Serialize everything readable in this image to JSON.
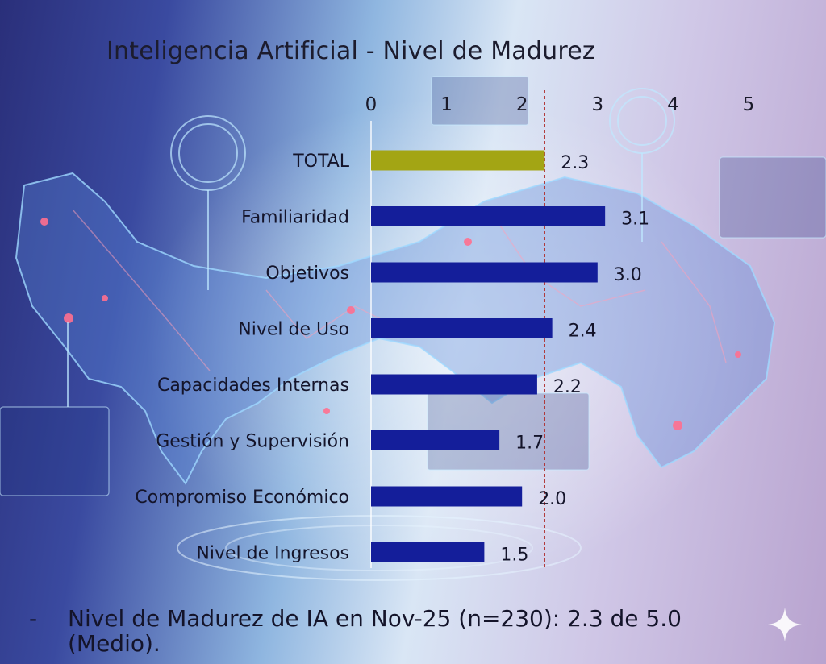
{
  "chart_data": {
    "type": "bar",
    "orientation": "horizontal",
    "title": "Inteligencia Artificial - Nivel de Madurez",
    "categories": [
      "TOTAL",
      "Familiaridad",
      "Objetivos",
      "Nivel de Uso",
      "Capacidades Internas",
      "Gestión y Supervisión",
      "Compromiso Económico",
      "Nivel de Ingresos"
    ],
    "values": [
      2.3,
      3.1,
      3.0,
      2.4,
      2.2,
      1.7,
      2.0,
      1.5
    ],
    "value_labels": [
      "2.3",
      "3.1",
      "3.0",
      "2.4",
      "2.2",
      "1.7",
      "2.0",
      "1.5"
    ],
    "xlim": [
      0,
      5
    ],
    "x_ticks": [
      "0",
      "1",
      "2",
      "3",
      "4",
      "5"
    ],
    "reference_line": 2.3,
    "axis_position": "top",
    "grid": false,
    "colors": {
      "highlight": "#a3a514",
      "bar": "#141e9a",
      "reference": "#b03030"
    }
  },
  "footer": {
    "bullet": "-",
    "note": "Nivel de Madurez de IA en Nov-25 (n=230): 2.3 de 5.0 (Medio)."
  }
}
